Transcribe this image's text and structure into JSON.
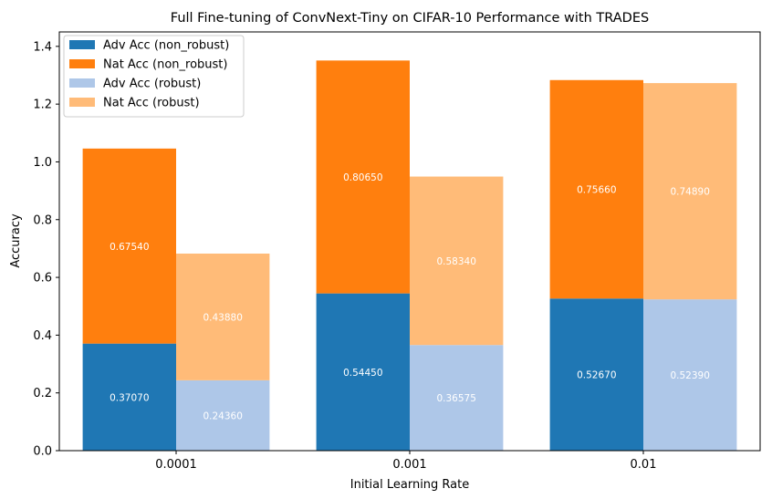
{
  "chart_data": {
    "type": "bar",
    "title": "Full Fine-tuning of ConvNext-Tiny on CIFAR-10 Performance with TRADES",
    "xlabel": "Initial Learning Rate",
    "ylabel": "Accuracy",
    "categories": [
      "0.0001",
      "0.001",
      "0.01"
    ],
    "ylim": [
      0,
      1.45
    ],
    "yticks": [
      "0.0",
      "0.2",
      "0.4",
      "0.6",
      "0.8",
      "1.0",
      "1.2",
      "1.4"
    ],
    "stacked": true,
    "grid": false,
    "legend_position": "top-left",
    "series": [
      {
        "name": "Adv Acc (non_robust)",
        "group": "non_robust",
        "color": "#1f77b4",
        "values": [
          0.3707,
          0.5445,
          0.5267
        ],
        "labels": [
          "0.37070",
          "0.54450",
          "0.52670"
        ]
      },
      {
        "name": "Nat Acc (non_robust)",
        "group": "non_robust",
        "color": "#ff7f0e",
        "values": [
          0.6754,
          0.8065,
          0.7566
        ],
        "labels": [
          "0.67540",
          "0.80650",
          "0.75660"
        ]
      },
      {
        "name": "Adv Acc (robust)",
        "group": "robust",
        "color": "#aec7e8",
        "values": [
          0.2436,
          0.36575,
          0.5239
        ],
        "labels": [
          "0.24360",
          "0.36575",
          "0.52390"
        ]
      },
      {
        "name": "Nat Acc (robust)",
        "group": "robust",
        "color": "#ffbb78",
        "values": [
          0.4388,
          0.5834,
          0.7489
        ],
        "labels": [
          "0.43880",
          "0.58340",
          "0.74890"
        ]
      }
    ]
  }
}
